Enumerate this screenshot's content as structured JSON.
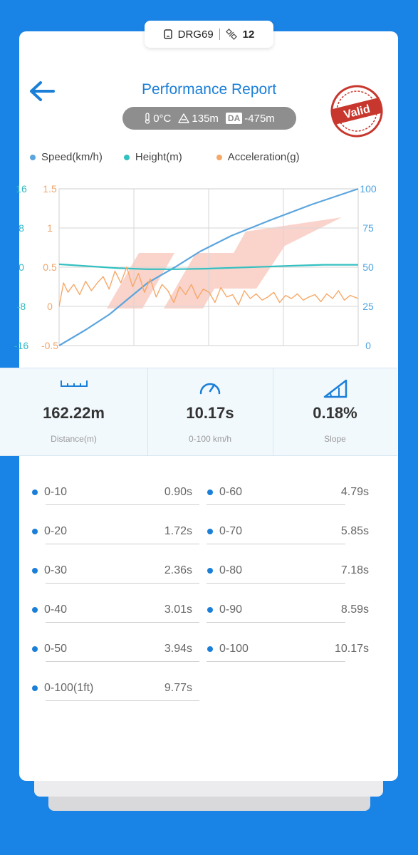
{
  "device": {
    "name": "DRG69",
    "satellites": "12"
  },
  "header": {
    "title": "Performance Report",
    "stamp_text": "Valid"
  },
  "conditions": {
    "temperature": "0°C",
    "altitude": "135m",
    "da_label": "DA",
    "density_altitude": "-475m"
  },
  "legend": [
    {
      "label": "Speed(km/h)",
      "color": "#5ba5de"
    },
    {
      "label": "Height(m)",
      "color": "#33c0c0"
    },
    {
      "label": "Acceleration(g)",
      "color": "#f6a868"
    }
  ],
  "chart_data": {
    "type": "line",
    "y_axes": {
      "height": {
        "ticks": [
          "16",
          "8",
          "0",
          "-8",
          "-16"
        ],
        "range": [
          -16,
          16
        ],
        "color": "#33b7bf"
      },
      "acceleration": {
        "ticks": [
          "1.5",
          "1",
          "0.5",
          "0",
          "-0.5"
        ],
        "range": [
          -0.5,
          1.5
        ],
        "color": "#f0a56b"
      },
      "speed": {
        "ticks": [
          "100",
          "75",
          "50",
          "25",
          "0"
        ],
        "range": [
          0,
          100
        ],
        "color": "#4fa3e0"
      }
    },
    "grid": true,
    "x_range": [
      0,
      10.17
    ],
    "series": [
      {
        "name": "Speed(km/h)",
        "axis": "speed",
        "x": [
          0,
          0.9,
          1.72,
          2.36,
          3.01,
          3.94,
          4.79,
          5.85,
          7.18,
          8.59,
          10.17
        ],
        "y": [
          0,
          10,
          20,
          30,
          40,
          50,
          60,
          70,
          80,
          90,
          100
        ]
      },
      {
        "name": "Height(m)",
        "axis": "height",
        "x": [
          0,
          1,
          2,
          3,
          4,
          5,
          6,
          7,
          8,
          9,
          10.17
        ],
        "y": [
          0.6,
          0.2,
          -0.2,
          -0.4,
          -0.4,
          -0.3,
          -0.1,
          0.1,
          0.3,
          0.5,
          0.5
        ]
      },
      {
        "name": "Acceleration(g)",
        "axis": "acceleration",
        "x": [
          0,
          0.15,
          0.3,
          0.5,
          0.7,
          0.9,
          1.1,
          1.3,
          1.5,
          1.7,
          1.9,
          2.1,
          2.3,
          2.5,
          2.7,
          2.9,
          3.1,
          3.3,
          3.5,
          3.7,
          3.9,
          4.1,
          4.3,
          4.5,
          4.7,
          4.9,
          5.1,
          5.3,
          5.5,
          5.7,
          5.9,
          6.1,
          6.3,
          6.5,
          6.7,
          6.9,
          7.1,
          7.3,
          7.5,
          7.7,
          7.9,
          8.1,
          8.3,
          8.5,
          8.7,
          8.9,
          9.1,
          9.3,
          9.5,
          9.7,
          9.9,
          10.17
        ],
        "y": [
          0,
          0.3,
          0.18,
          0.28,
          0.15,
          0.32,
          0.2,
          0.3,
          0.38,
          0.22,
          0.45,
          0.3,
          0.5,
          0.25,
          0.42,
          0.18,
          0.35,
          0.12,
          0.28,
          0.2,
          0.05,
          0.25,
          0.15,
          0.28,
          0.1,
          0.22,
          0.18,
          0.05,
          0.24,
          0.12,
          0.15,
          0.02,
          0.2,
          0.1,
          0.16,
          0.08,
          0.12,
          0.18,
          0.05,
          0.14,
          0.1,
          0.16,
          0.08,
          0.12,
          0.15,
          0.06,
          0.16,
          0.1,
          0.2,
          0.08,
          0.14,
          0.1
        ]
      }
    ]
  },
  "stats": [
    {
      "value": "162.22m",
      "label": "Distance(m)"
    },
    {
      "value": "10.17s",
      "label": "0-100 km/h"
    },
    {
      "value": "0.18%",
      "label": "Slope"
    }
  ],
  "times_left": [
    {
      "label": "0-10",
      "value": "0.90s"
    },
    {
      "label": "0-20",
      "value": "1.72s"
    },
    {
      "label": "0-30",
      "value": "2.36s"
    },
    {
      "label": "0-40",
      "value": "3.01s"
    },
    {
      "label": "0-50",
      "value": "3.94s"
    },
    {
      "label": "0-100(1ft)",
      "value": "9.77s"
    }
  ],
  "times_right": [
    {
      "label": "0-60",
      "value": "4.79s"
    },
    {
      "label": "0-70",
      "value": "5.85s"
    },
    {
      "label": "0-80",
      "value": "7.18s"
    },
    {
      "label": "0-90",
      "value": "8.59s"
    },
    {
      "label": "0-100",
      "value": "10.17s"
    }
  ]
}
